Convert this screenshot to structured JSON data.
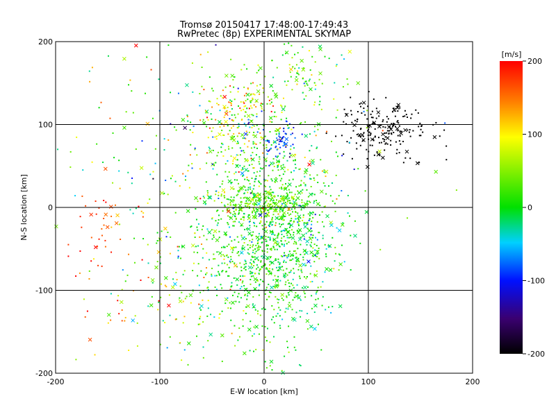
{
  "chart_data": {
    "type": "scatter",
    "title": "Tromsø 20150417 17:48:00-17:49:43",
    "subtitle": "RwPretec (8p) EXPERIMENTAL SKYMAP",
    "xlabel": "E-W location [km]",
    "ylabel": "N-S location [km]",
    "xlim": [
      -200,
      200
    ],
    "ylim": [
      -200,
      200
    ],
    "xticks": [
      "-200",
      "-100",
      "0",
      "100",
      "200"
    ],
    "yticks": [
      "-200",
      "-100",
      "0",
      "100",
      "200"
    ],
    "grid": true,
    "markers": [
      "dot",
      "cross"
    ],
    "colorbar": {
      "label": "[m/s]",
      "range": [
        -200,
        200
      ],
      "ticks": [
        "200",
        "100",
        "0",
        "-100",
        "-200"
      ],
      "colormap": [
        "#000000",
        "#3a0070",
        "#0010ff",
        "#00d0ff",
        "#00e000",
        "#ffff00",
        "#ff8000",
        "#ff0000"
      ]
    },
    "clusters": [
      {
        "cx": 3,
        "cy": -40,
        "sx": 28,
        "sy": 60,
        "n": 900,
        "v": 10,
        "vs": 25
      },
      {
        "cx": 0,
        "cy": 5,
        "sx": 25,
        "sy": 12,
        "n": 220,
        "v": 40,
        "vs": 25
      },
      {
        "cx": -15,
        "cy": 80,
        "sx": 22,
        "sy": 35,
        "n": 220,
        "v": 40,
        "vs": 60
      },
      {
        "cx": -60,
        "cy": -90,
        "sx": 35,
        "sy": 50,
        "n": 180,
        "v": 40,
        "vs": 60
      },
      {
        "cx": 115,
        "cy": 95,
        "sx": 22,
        "sy": 18,
        "n": 200,
        "v": -200,
        "vs": 0
      },
      {
        "cx": 35,
        "cy": 160,
        "sx": 20,
        "sy": 25,
        "n": 90,
        "v": 40,
        "vs": 35
      },
      {
        "cx": -25,
        "cy": 120,
        "sx": 18,
        "sy": 15,
        "n": 80,
        "v": 110,
        "vs": 50
      },
      {
        "cx": -160,
        "cy": -20,
        "sx": 18,
        "sy": 30,
        "n": 40,
        "v": 180,
        "vs": 20
      },
      {
        "cx": -150,
        "cy": -130,
        "sx": 25,
        "sy": 25,
        "n": 25,
        "v": 150,
        "vs": 60
      },
      {
        "cx": -40,
        "cy": 60,
        "sx": 80,
        "sy": 70,
        "n": 280,
        "v": 20,
        "vs": 80
      },
      {
        "cx": 15,
        "cy": 80,
        "sx": 8,
        "sy": 10,
        "n": 50,
        "v": -90,
        "vs": 20
      },
      {
        "cx": 40,
        "cy": -40,
        "sx": 25,
        "sy": 40,
        "n": 140,
        "v": -20,
        "vs": 40
      }
    ]
  }
}
